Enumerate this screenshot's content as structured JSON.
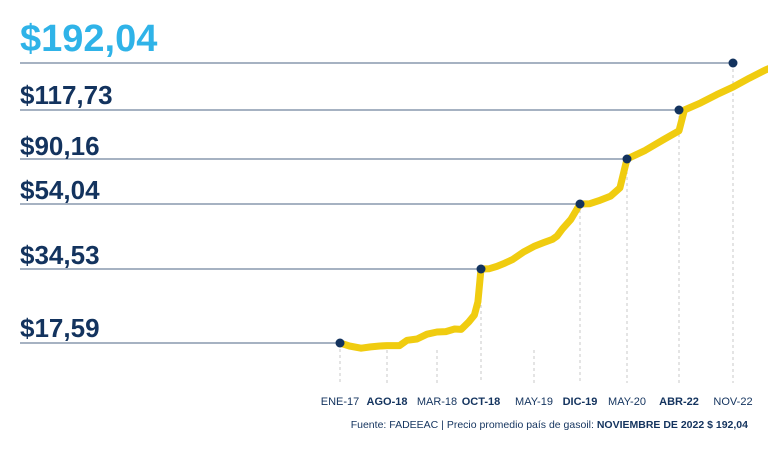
{
  "colors": {
    "line": "#f0cc10",
    "marker": "#13335e",
    "label": "#13335e",
    "highlight": "#2fb3e8",
    "gridline": "#13335e",
    "dashed": "#c8c8c8"
  },
  "source": {
    "prefix": "Fuente: FADEEAC",
    "middle": " | Precio promedio país de gasoil: ",
    "highlight": "NOVIEMBRE DE 2022 $ 192,04"
  },
  "chart_data": {
    "type": "line",
    "x_ticks": [
      {
        "label": "ENE-17",
        "bold": false
      },
      {
        "label": "AGO-18",
        "bold": true
      },
      {
        "label": "MAR-18",
        "bold": false
      },
      {
        "label": "OCT-18",
        "bold": true
      },
      {
        "label": "MAY-19",
        "bold": false
      },
      {
        "label": "DIC-19",
        "bold": true
      },
      {
        "label": "MAY-20",
        "bold": false
      },
      {
        "label": "ABR-22",
        "bold": true
      },
      {
        "label": "NOV-22",
        "bold": false
      }
    ],
    "highlighted_points": [
      {
        "x": "ENE-17",
        "value": 17.59,
        "label": "$17,59"
      },
      {
        "x": "OCT-18",
        "value": 34.53,
        "label": "$34,53"
      },
      {
        "x": "DIC-19",
        "value": 54.04,
        "label": "$54,04"
      },
      {
        "x": "MAY-20",
        "value": 90.16,
        "label": "$90,16"
      },
      {
        "x": "ABR-22",
        "value": 117.73,
        "label": "$117,73"
      },
      {
        "x": "NOV-22",
        "value": 192.04,
        "label": "$192,04",
        "highlight": true
      }
    ],
    "series": [
      {
        "points": [
          [
            0.0,
            17.59
          ],
          [
            0.2,
            16.9
          ],
          [
            0.45,
            16.4
          ],
          [
            0.65,
            16.7
          ],
          [
            0.85,
            16.9
          ],
          [
            1.0,
            17.0
          ],
          [
            1.25,
            17.0
          ],
          [
            1.4,
            18.2
          ],
          [
            1.6,
            18.5
          ],
          [
            1.8,
            19.6
          ],
          [
            2.0,
            20.1
          ],
          [
            2.2,
            20.2
          ],
          [
            2.4,
            20.8
          ],
          [
            2.55,
            20.7
          ],
          [
            2.72,
            22.4
          ],
          [
            2.85,
            24.0
          ],
          [
            2.93,
            27.0
          ],
          [
            3.0,
            34.53
          ],
          [
            3.15,
            34.6
          ],
          [
            3.3,
            35.3
          ],
          [
            3.45,
            36.3
          ],
          [
            3.6,
            37.4
          ],
          [
            3.8,
            39.6
          ],
          [
            4.0,
            41.3
          ],
          [
            4.2,
            42.4
          ],
          [
            4.4,
            43.4
          ],
          [
            4.5,
            44.4
          ],
          [
            4.62,
            46.6
          ],
          [
            4.8,
            49.4
          ],
          [
            5.0,
            54.04
          ],
          [
            5.2,
            54.2
          ],
          [
            5.4,
            56.7
          ],
          [
            5.65,
            60.4
          ],
          [
            5.85,
            67.0
          ],
          [
            6.0,
            90.16
          ],
          [
            6.35,
            95.0
          ],
          [
            6.7,
            101.0
          ],
          [
            7.0,
            106.0
          ],
          [
            7.1,
            117.73
          ],
          [
            7.4,
            129.0
          ],
          [
            7.7,
            142.0
          ],
          [
            8.0,
            154.0
          ],
          [
            8.3,
            168.0
          ],
          [
            8.6,
            181.0
          ],
          [
            8.9,
            192.04
          ]
        ]
      }
    ]
  }
}
